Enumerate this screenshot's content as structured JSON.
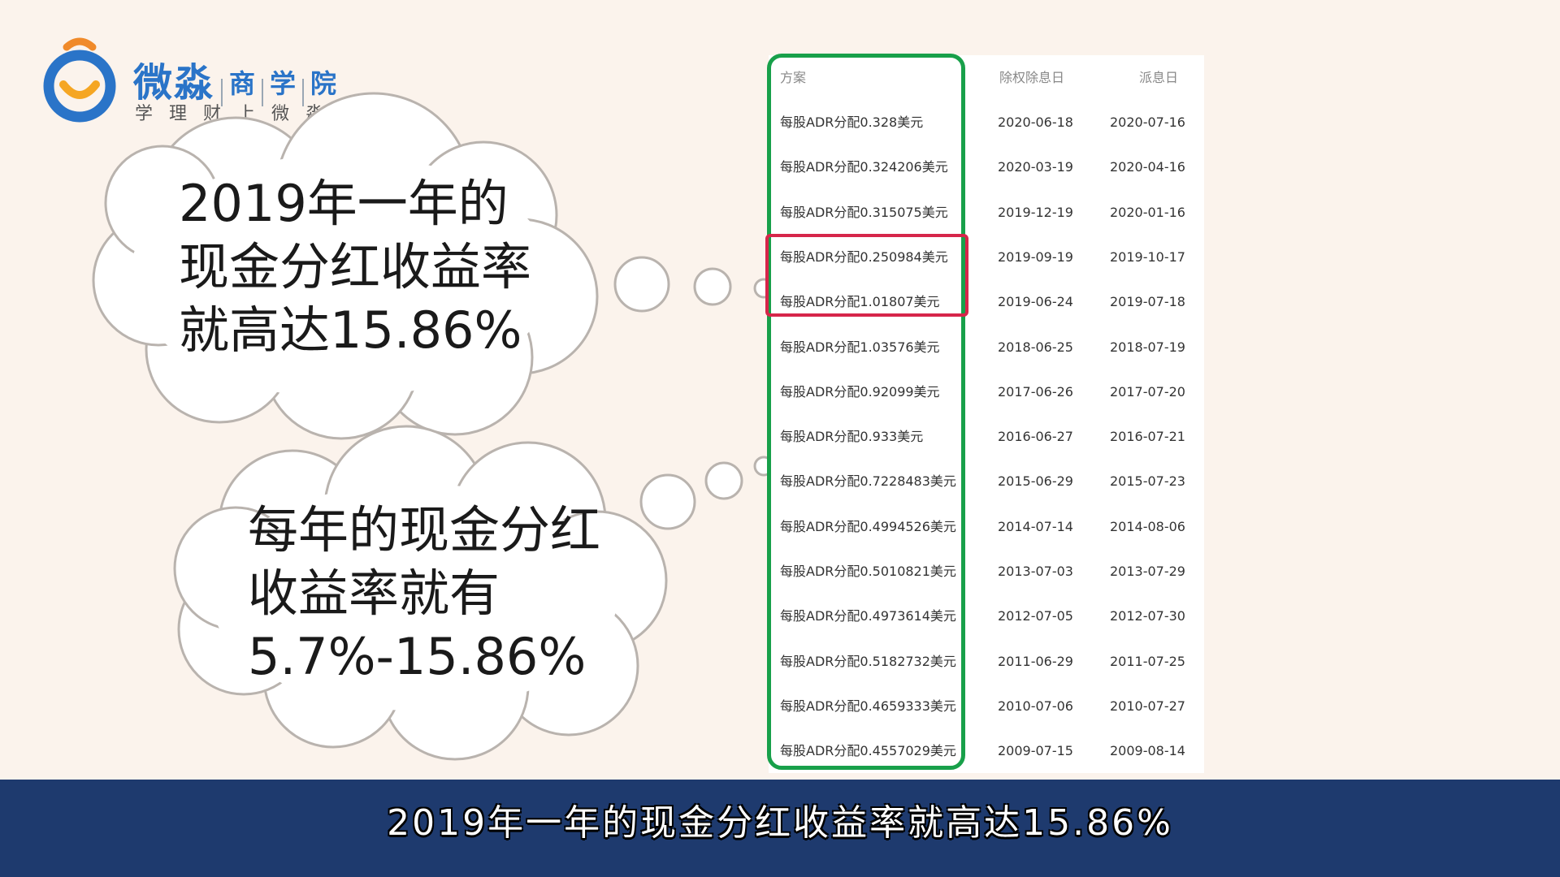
{
  "logo": {
    "brand": "微淼",
    "suffix_parts": [
      "商",
      "学",
      "院"
    ],
    "slogan": "学理财上微淼",
    "colors": {
      "blue": "#2a74c8",
      "orange": "#f08a2a"
    }
  },
  "bubbles": [
    {
      "text": "2019年一年的\n现金分红收益率\n就高达15.86%"
    },
    {
      "text": "每年的现金分红\n收益率就有\n5.7%-15.86%"
    }
  ],
  "table": {
    "headers": [
      "方案",
      "除权除息日",
      "派息日"
    ],
    "rows": [
      {
        "plan": "每股ADR分配0.328美元",
        "ex_date": "2020-06-18",
        "pay_date": "2020-07-16"
      },
      {
        "plan": "每股ADR分配0.324206美元",
        "ex_date": "2020-03-19",
        "pay_date": "2020-04-16"
      },
      {
        "plan": "每股ADR分配0.315075美元",
        "ex_date": "2019-12-19",
        "pay_date": "2020-01-16"
      },
      {
        "plan": "每股ADR分配0.250984美元",
        "ex_date": "2019-09-19",
        "pay_date": "2019-10-17"
      },
      {
        "plan": "每股ADR分配1.01807美元",
        "ex_date": "2019-06-24",
        "pay_date": "2019-07-18"
      },
      {
        "plan": "每股ADR分配1.03576美元",
        "ex_date": "2018-06-25",
        "pay_date": "2018-07-19"
      },
      {
        "plan": "每股ADR分配0.92099美元",
        "ex_date": "2017-06-26",
        "pay_date": "2017-07-20"
      },
      {
        "plan": "每股ADR分配0.933美元",
        "ex_date": "2016-06-27",
        "pay_date": "2016-07-21"
      },
      {
        "plan": "每股ADR分配0.7228483美元",
        "ex_date": "2015-06-29",
        "pay_date": "2015-07-23"
      },
      {
        "plan": "每股ADR分配0.4994526美元",
        "ex_date": "2014-07-14",
        "pay_date": "2014-08-06"
      },
      {
        "plan": "每股ADR分配0.5010821美元",
        "ex_date": "2013-07-03",
        "pay_date": "2013-07-29"
      },
      {
        "plan": "每股ADR分配0.4973614美元",
        "ex_date": "2012-07-05",
        "pay_date": "2012-07-30"
      },
      {
        "plan": "每股ADR分配0.5182732美元",
        "ex_date": "2011-06-29",
        "pay_date": "2011-07-25"
      },
      {
        "plan": "每股ADR分配0.4659333美元",
        "ex_date": "2010-07-06",
        "pay_date": "2010-07-27"
      },
      {
        "plan": "每股ADR分配0.4557029美元",
        "ex_date": "2009-07-15",
        "pay_date": "2009-08-14"
      }
    ],
    "highlight_colors": {
      "column": "#18a04a",
      "rows_2019": "#d6264a"
    }
  },
  "caption": "2019年一年的现金分红收益率就高达15.86%"
}
